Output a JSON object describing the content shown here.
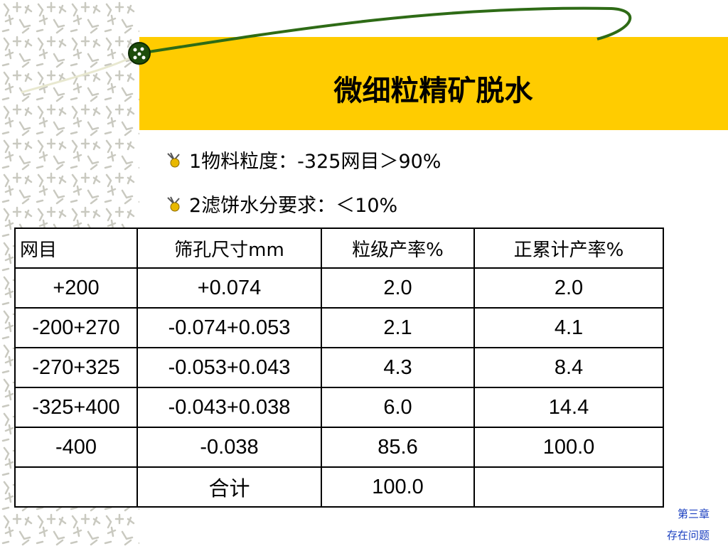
{
  "header": {
    "title": "微细粒精矿脱水"
  },
  "bullets": [
    "1物料粒度：-325网目＞90%",
    "2滤饼水分要求：＜10%"
  ],
  "table": {
    "header": [
      "网目",
      "筛孔尺寸mm",
      "粒级产率%",
      "正累计产率%"
    ],
    "rows": [
      [
        "+200",
        "+0.074",
        "2.0",
        "2.0"
      ],
      [
        "-200+270",
        "-0.074+0.053",
        "2.1",
        "4.1"
      ],
      [
        "-270+325",
        "-0.053+0.043",
        "4.3",
        "8.4"
      ],
      [
        "-325+400",
        "-0.043+0.038",
        "6.0",
        "14.4"
      ],
      [
        "-400",
        "-0.038",
        "85.6",
        "100.0"
      ],
      [
        null,
        "合计",
        "100.0",
        null
      ]
    ]
  },
  "footer": {
    "chapter": "第三章",
    "link": "存在问题"
  }
}
